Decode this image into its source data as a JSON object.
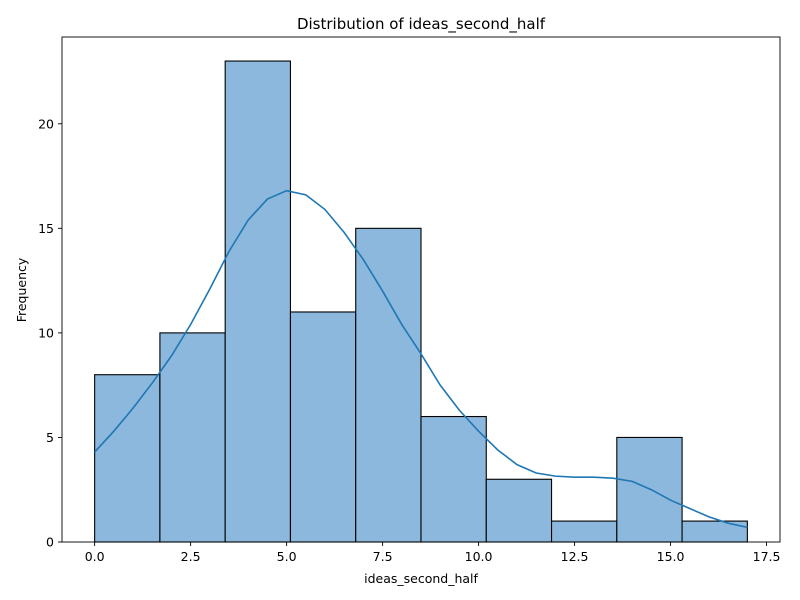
{
  "chart_data": {
    "type": "bar",
    "title": "Distribution of ideas_second_half",
    "xlabel": "ideas_second_half",
    "ylabel": "Frequency",
    "xlim": [
      -0.85,
      17.85
    ],
    "ylim": [
      0,
      24.15
    ],
    "xticks": [
      0.0,
      2.5,
      5.0,
      7.5,
      10.0,
      12.5,
      15.0,
      17.5
    ],
    "xtick_labels": [
      "0.0",
      "2.5",
      "5.0",
      "7.5",
      "10.0",
      "12.5",
      "15.0",
      "17.5"
    ],
    "yticks": [
      0,
      5,
      10,
      15,
      20
    ],
    "ytick_labels": [
      "0",
      "5",
      "10",
      "15",
      "20"
    ],
    "bins": [
      {
        "x0": 0.0,
        "x1": 1.7,
        "count": 8
      },
      {
        "x0": 1.7,
        "x1": 3.4,
        "count": 10
      },
      {
        "x0": 3.4,
        "x1": 5.1,
        "count": 23
      },
      {
        "x0": 5.1,
        "x1": 6.8,
        "count": 11
      },
      {
        "x0": 6.8,
        "x1": 8.5,
        "count": 15
      },
      {
        "x0": 8.5,
        "x1": 10.2,
        "count": 6
      },
      {
        "x0": 10.2,
        "x1": 11.9,
        "count": 3
      },
      {
        "x0": 11.9,
        "x1": 13.6,
        "count": 1
      },
      {
        "x0": 13.6,
        "x1": 15.3,
        "count": 5
      },
      {
        "x0": 15.3,
        "x1": 17.0,
        "count": 1
      }
    ],
    "kde": {
      "x": [
        0.0,
        0.5,
        1.0,
        1.5,
        2.0,
        2.5,
        3.0,
        3.5,
        4.0,
        4.5,
        5.0,
        5.5,
        6.0,
        6.5,
        7.0,
        7.5,
        8.0,
        8.5,
        9.0,
        9.5,
        10.0,
        10.5,
        11.0,
        11.5,
        12.0,
        12.5,
        13.0,
        13.5,
        14.0,
        14.5,
        15.0,
        15.5,
        16.0,
        16.5,
        17.0
      ],
      "y": [
        4.3,
        5.3,
        6.4,
        7.6,
        8.9,
        10.4,
        12.1,
        13.9,
        15.4,
        16.4,
        16.8,
        16.6,
        15.9,
        14.8,
        13.5,
        12.0,
        10.4,
        9.0,
        7.5,
        6.3,
        5.3,
        4.4,
        3.7,
        3.3,
        3.15,
        3.1,
        3.1,
        3.05,
        2.9,
        2.5,
        2.0,
        1.6,
        1.2,
        0.9,
        0.7
      ]
    },
    "legend": "none",
    "grid": false,
    "colors": {
      "bar": "#8bb8dc",
      "edge": "#000000",
      "kde": "#1f77b4"
    }
  }
}
